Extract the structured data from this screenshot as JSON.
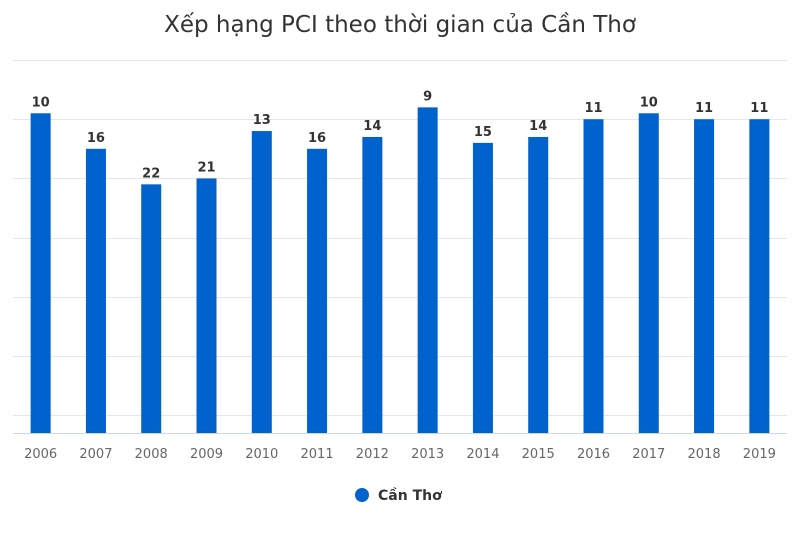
{
  "chart_data": {
    "type": "bar",
    "title": "Xếp hạng PCI theo thời gian của Cần Thơ",
    "categories": [
      "2006",
      "2007",
      "2008",
      "2009",
      "2010",
      "2011",
      "2012",
      "2013",
      "2014",
      "2015",
      "2016",
      "2017",
      "2018",
      "2019"
    ],
    "series": [
      {
        "name": "Cần Thơ",
        "color": "#0062cc",
        "values": [
          10,
          16,
          22,
          21,
          13,
          16,
          14,
          9,
          15,
          14,
          11,
          10,
          11,
          11
        ]
      }
    ],
    "yaxis": {
      "reversed": true,
      "min": 1,
      "max": 64,
      "tick_interval": 10
    },
    "legend_position": "bottom-center",
    "grid": true
  }
}
